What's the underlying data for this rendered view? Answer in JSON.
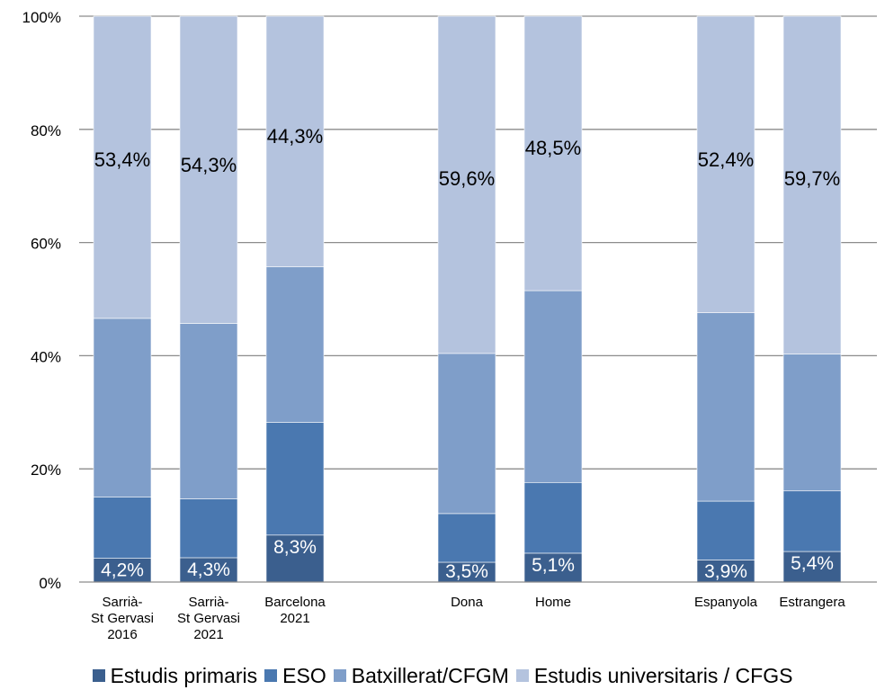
{
  "chart_data": {
    "type": "bar",
    "stacked": true,
    "percent_stacked": true,
    "categories": [
      [
        "Sarrià-",
        "St Gervasi",
        "2016"
      ],
      [
        "Sarrià-",
        "St Gervasi",
        "2021"
      ],
      [
        "Barcelona",
        "2021"
      ],
      [
        "Dona"
      ],
      [
        "Home"
      ],
      [
        "Espanyola"
      ],
      [
        "Estrangera"
      ]
    ],
    "groups": [
      [
        0,
        1,
        2
      ],
      [
        3,
        4
      ],
      [
        5,
        6
      ]
    ],
    "series": [
      {
        "name": "Estudis primaris",
        "color": "#3b5f8e",
        "values": [
          4.2,
          4.3,
          8.3,
          3.5,
          5.1,
          3.9,
          5.4
        ]
      },
      {
        "name": "ESO",
        "color": "#4a78b0",
        "values": [
          10.8,
          10.4,
          19.9,
          8.6,
          12.5,
          10.4,
          10.7
        ]
      },
      {
        "name": "Batxillerat/CFGM",
        "color": "#7f9ec9",
        "values": [
          31.6,
          31.0,
          27.5,
          28.3,
          33.9,
          33.3,
          24.2
        ]
      },
      {
        "name": "Estudis universitaris / CFGS",
        "color": "#b4c3de",
        "values": [
          53.4,
          54.3,
          44.3,
          59.6,
          48.5,
          52.4,
          59.7
        ]
      }
    ],
    "data_labels": {
      "Estudis primaris": [
        "4,2%",
        "4,3%",
        "8,3%",
        "3,5%",
        "5,1%",
        "3,9%",
        "5,4%"
      ],
      "Estudis universitaris / CFGS": [
        "53,4%",
        "54,3%",
        "44,3%",
        "59,6%",
        "48,5%",
        "52,4%",
        "59,7%"
      ]
    },
    "y_ticks": [
      "0%",
      "20%",
      "40%",
      "60%",
      "80%",
      "100%"
    ],
    "ylim": [
      0,
      100
    ],
    "grid": true,
    "legend_position": "bottom"
  }
}
